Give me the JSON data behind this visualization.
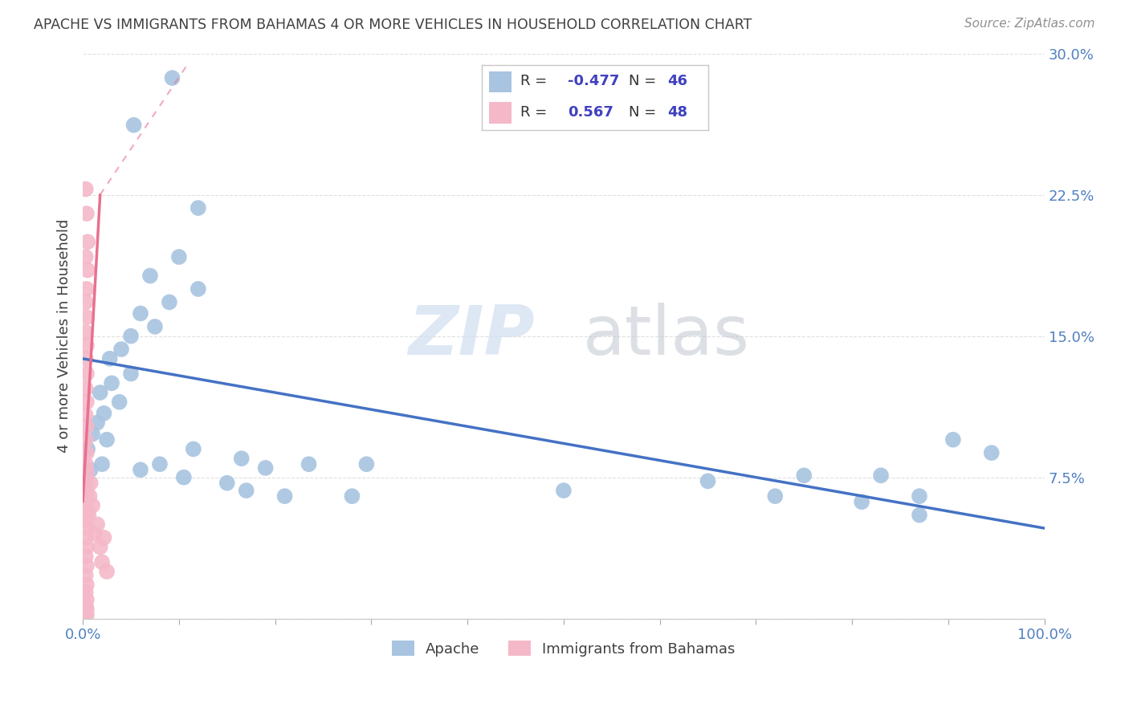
{
  "title": "APACHE VS IMMIGRANTS FROM BAHAMAS 4 OR MORE VEHICLES IN HOUSEHOLD CORRELATION CHART",
  "source": "Source: ZipAtlas.com",
  "ylabel": "4 or more Vehicles in Household",
  "xlim": [
    0.0,
    1.0
  ],
  "ylim": [
    0.0,
    0.3
  ],
  "yticks": [
    0.0,
    0.075,
    0.15,
    0.225,
    0.3
  ],
  "ytick_labels": [
    "",
    "7.5%",
    "15.0%",
    "22.5%",
    "30.0%"
  ],
  "apache_color": "#a8c4e0",
  "bahamas_color": "#f4b8c8",
  "apache_line_color": "#4472c4",
  "bahamas_line_color": "#e87090",
  "apache_scatter": [
    [
      0.093,
      0.287
    ],
    [
      0.053,
      0.262
    ],
    [
      0.12,
      0.218
    ],
    [
      0.1,
      0.192
    ],
    [
      0.07,
      0.182
    ],
    [
      0.12,
      0.175
    ],
    [
      0.09,
      0.168
    ],
    [
      0.06,
      0.162
    ],
    [
      0.075,
      0.155
    ],
    [
      0.05,
      0.15
    ],
    [
      0.04,
      0.143
    ],
    [
      0.028,
      0.138
    ],
    [
      0.05,
      0.13
    ],
    [
      0.03,
      0.125
    ],
    [
      0.018,
      0.12
    ],
    [
      0.038,
      0.115
    ],
    [
      0.022,
      0.109
    ],
    [
      0.015,
      0.104
    ],
    [
      0.01,
      0.098
    ],
    [
      0.005,
      0.09
    ],
    [
      0.02,
      0.082
    ],
    [
      0.008,
      0.079
    ],
    [
      0.003,
      0.075
    ],
    [
      0.025,
      0.095
    ],
    [
      0.115,
      0.09
    ],
    [
      0.165,
      0.085
    ],
    [
      0.08,
      0.082
    ],
    [
      0.06,
      0.079
    ],
    [
      0.235,
      0.082
    ],
    [
      0.295,
      0.082
    ],
    [
      0.105,
      0.075
    ],
    [
      0.15,
      0.072
    ],
    [
      0.17,
      0.068
    ],
    [
      0.21,
      0.065
    ],
    [
      0.28,
      0.065
    ],
    [
      0.19,
      0.08
    ],
    [
      0.5,
      0.068
    ],
    [
      0.65,
      0.073
    ],
    [
      0.72,
      0.065
    ],
    [
      0.81,
      0.062
    ],
    [
      0.75,
      0.076
    ],
    [
      0.83,
      0.076
    ],
    [
      0.87,
      0.065
    ],
    [
      0.87,
      0.055
    ],
    [
      0.905,
      0.095
    ],
    [
      0.945,
      0.088
    ]
  ],
  "bahamas_scatter": [
    [
      0.003,
      0.228
    ],
    [
      0.004,
      0.215
    ],
    [
      0.005,
      0.2
    ],
    [
      0.003,
      0.192
    ],
    [
      0.005,
      0.185
    ],
    [
      0.004,
      0.175
    ],
    [
      0.003,
      0.168
    ],
    [
      0.004,
      0.16
    ],
    [
      0.003,
      0.152
    ],
    [
      0.004,
      0.145
    ],
    [
      0.003,
      0.138
    ],
    [
      0.004,
      0.13
    ],
    [
      0.003,
      0.122
    ],
    [
      0.004,
      0.115
    ],
    [
      0.003,
      0.108
    ],
    [
      0.004,
      0.102
    ],
    [
      0.003,
      0.095
    ],
    [
      0.004,
      0.088
    ],
    [
      0.003,
      0.082
    ],
    [
      0.004,
      0.078
    ],
    [
      0.003,
      0.072
    ],
    [
      0.004,
      0.067
    ],
    [
      0.003,
      0.062
    ],
    [
      0.004,
      0.057
    ],
    [
      0.003,
      0.052
    ],
    [
      0.004,
      0.048
    ],
    [
      0.003,
      0.043
    ],
    [
      0.004,
      0.038
    ],
    [
      0.003,
      0.033
    ],
    [
      0.004,
      0.028
    ],
    [
      0.003,
      0.023
    ],
    [
      0.004,
      0.018
    ],
    [
      0.003,
      0.014
    ],
    [
      0.004,
      0.01
    ],
    [
      0.003,
      0.007
    ],
    [
      0.004,
      0.005
    ],
    [
      0.003,
      0.003
    ],
    [
      0.004,
      0.002
    ],
    [
      0.006,
      0.055
    ],
    [
      0.007,
      0.065
    ],
    [
      0.008,
      0.072
    ],
    [
      0.01,
      0.06
    ],
    [
      0.012,
      0.045
    ],
    [
      0.015,
      0.05
    ],
    [
      0.018,
      0.038
    ],
    [
      0.02,
      0.03
    ],
    [
      0.025,
      0.025
    ],
    [
      0.022,
      0.043
    ]
  ],
  "apache_trend": [
    0.0,
    1.0,
    0.138,
    0.048
  ],
  "bahamas_trend_solid": [
    0.0,
    0.018,
    0.062,
    0.225
  ],
  "bahamas_trend_dashed": [
    0.018,
    0.11,
    0.225,
    0.295
  ],
  "watermark_zip": "ZIP",
  "watermark_atlas": "atlas",
  "background_color": "#ffffff",
  "grid_color": "#d8d8d8",
  "title_color": "#404040",
  "axis_label_color": "#404040",
  "tick_label_color": "#5080c0",
  "legend_r_color": "#4040c0",
  "legend_box_border": "#c8c8c8"
}
